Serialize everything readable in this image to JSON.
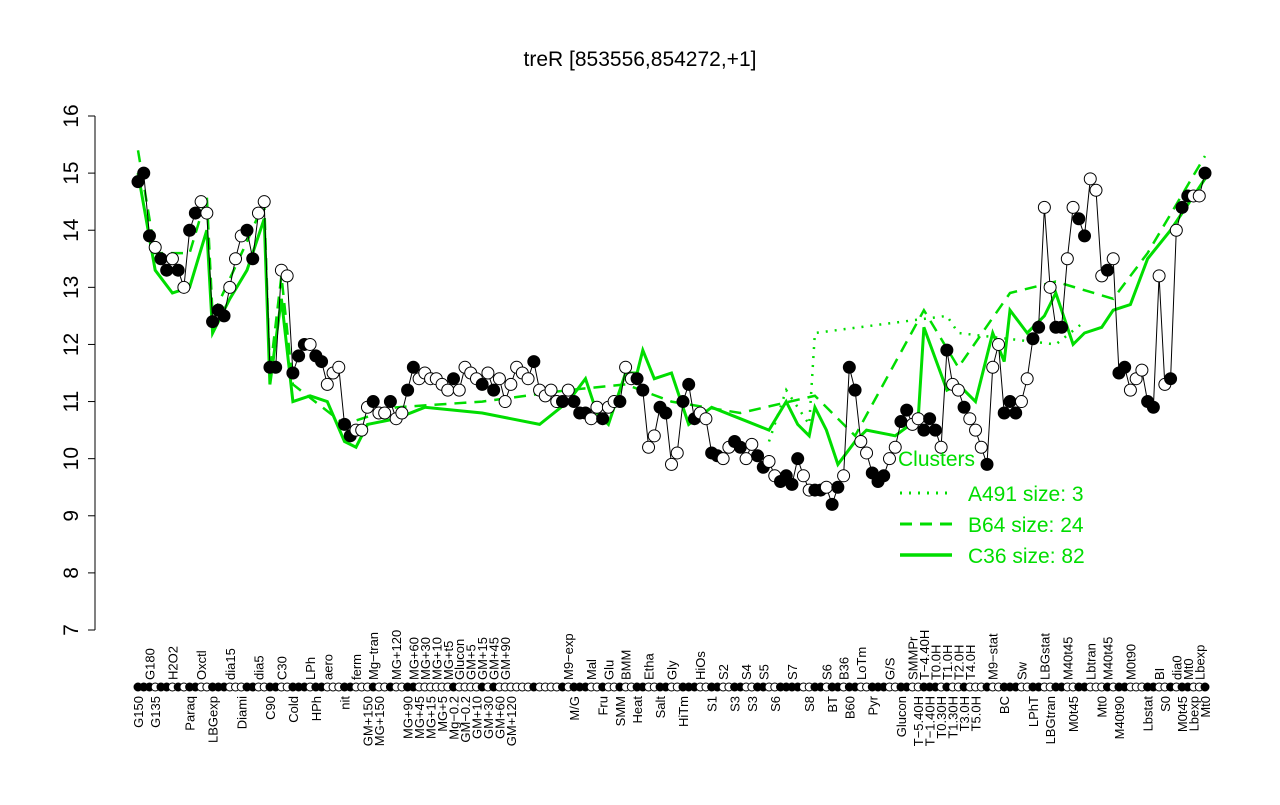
{
  "chart_data": {
    "type": "scatter",
    "title": "treR [853556,854272,+1]",
    "xlabel": "",
    "ylabel": "",
    "ylim": [
      7,
      16
    ],
    "yticks": [
      7,
      8,
      9,
      10,
      11,
      12,
      13,
      14,
      15,
      16
    ],
    "grid": false,
    "colors": {
      "points_stroke": "#000000",
      "filled": "#000000",
      "hollow": "#ffffff",
      "clusters": "#00dd00"
    },
    "legend": {
      "placement": "bottom-right",
      "title": "Clusters",
      "entries": [
        {
          "label": "A491 size: 3",
          "style": "dotted"
        },
        {
          "label": "B64 size: 24",
          "style": "dashed"
        },
        {
          "label": "C36 size: 82",
          "style": "solid"
        }
      ]
    },
    "points": [
      [
        14.85,
        1,
        "G150"
      ],
      [
        15.0,
        1,
        ""
      ],
      [
        13.9,
        1,
        "G180"
      ],
      [
        13.7,
        0,
        "G135"
      ],
      [
        13.5,
        1,
        ""
      ],
      [
        13.3,
        1,
        ""
      ],
      [
        13.5,
        0,
        "H2O2"
      ],
      [
        13.3,
        1,
        ""
      ],
      [
        13.0,
        0,
        ""
      ],
      [
        14.0,
        1,
        "Paraq"
      ],
      [
        14.3,
        1,
        ""
      ],
      [
        14.5,
        0,
        "Oxctl"
      ],
      [
        14.3,
        0,
        ""
      ],
      [
        12.4,
        1,
        "LBGexp"
      ],
      [
        12.6,
        1,
        ""
      ],
      [
        12.5,
        1,
        ""
      ],
      [
        13.0,
        0,
        "dia15"
      ],
      [
        13.5,
        0,
        ""
      ],
      [
        13.9,
        0,
        "Diami"
      ],
      [
        14.0,
        1,
        ""
      ],
      [
        13.5,
        1,
        ""
      ],
      [
        14.3,
        0,
        "dia5"
      ],
      [
        14.5,
        0,
        ""
      ],
      [
        11.6,
        1,
        "C90"
      ],
      [
        11.6,
        1,
        ""
      ],
      [
        13.3,
        0,
        "C30"
      ],
      [
        13.2,
        0,
        ""
      ],
      [
        11.5,
        1,
        "Cold"
      ],
      [
        11.8,
        1,
        ""
      ],
      [
        12.0,
        1,
        ""
      ],
      [
        12.0,
        0,
        "LPh"
      ],
      [
        11.8,
        1,
        "HPh"
      ],
      [
        11.7,
        1,
        ""
      ],
      [
        11.3,
        0,
        "aero"
      ],
      [
        11.5,
        0,
        ""
      ],
      [
        11.6,
        0,
        ""
      ],
      [
        10.6,
        1,
        "nit"
      ],
      [
        10.4,
        1,
        ""
      ],
      [
        10.5,
        0,
        "ferm"
      ],
      [
        10.5,
        0,
        ""
      ],
      [
        10.9,
        0,
        "GM+150"
      ],
      [
        11.0,
        1,
        "Mg−tran"
      ],
      [
        10.8,
        0,
        "MG+150"
      ],
      [
        10.8,
        0,
        ""
      ],
      [
        11.0,
        1,
        ""
      ],
      [
        10.7,
        0,
        "MG+120"
      ],
      [
        10.8,
        0,
        ""
      ],
      [
        11.2,
        1,
        "MG+90"
      ],
      [
        11.6,
        1,
        "MG+60"
      ],
      [
        11.4,
        0,
        "MG+45"
      ],
      [
        11.5,
        0,
        "MG+30"
      ],
      [
        11.4,
        0,
        "MG+15"
      ],
      [
        11.4,
        0,
        "MG+10"
      ],
      [
        11.3,
        0,
        "MG+5"
      ],
      [
        11.2,
        0,
        "MG+t5"
      ],
      [
        11.4,
        1,
        "Mg−0.2"
      ],
      [
        11.2,
        0,
        "Glucon"
      ],
      [
        11.6,
        0,
        "GM−0.2"
      ],
      [
        11.5,
        0,
        "GM+5"
      ],
      [
        11.4,
        0,
        "GM+10"
      ],
      [
        11.3,
        1,
        "GM+15"
      ],
      [
        11.5,
        0,
        "GM+30"
      ],
      [
        11.2,
        1,
        "GM+45"
      ],
      [
        11.4,
        0,
        "GM+60"
      ],
      [
        11.0,
        0,
        "GM+90"
      ],
      [
        11.3,
        0,
        "GM+120"
      ],
      [
        11.6,
        0,
        ""
      ],
      [
        11.5,
        0,
        ""
      ],
      [
        11.4,
        0,
        ""
      ],
      [
        11.7,
        1,
        ""
      ],
      [
        11.2,
        0,
        ""
      ],
      [
        11.1,
        0,
        ""
      ],
      [
        11.2,
        0,
        ""
      ],
      [
        11.0,
        0,
        ""
      ],
      [
        11.0,
        1,
        ""
      ],
      [
        11.2,
        0,
        "M9−exp"
      ],
      [
        11.0,
        1,
        "M/G"
      ],
      [
        10.8,
        1,
        ""
      ],
      [
        10.8,
        1,
        ""
      ],
      [
        10.7,
        0,
        "Mal"
      ],
      [
        10.9,
        0,
        ""
      ],
      [
        10.7,
        1,
        "Fru"
      ],
      [
        10.9,
        0,
        "Glu"
      ],
      [
        11.0,
        0,
        ""
      ],
      [
        11.0,
        1,
        "SMM"
      ],
      [
        11.6,
        0,
        "BMM"
      ],
      [
        11.4,
        0,
        ""
      ],
      [
        11.4,
        1,
        "Heat"
      ],
      [
        11.2,
        1,
        ""
      ],
      [
        10.2,
        0,
        "Etha"
      ],
      [
        10.4,
        0,
        ""
      ],
      [
        10.9,
        1,
        "Salt"
      ],
      [
        10.8,
        1,
        ""
      ],
      [
        9.9,
        0,
        "Gly"
      ],
      [
        10.1,
        0,
        ""
      ],
      [
        11.0,
        1,
        "HiTm"
      ],
      [
        11.3,
        1,
        ""
      ],
      [
        10.7,
        1,
        ""
      ],
      [
        10.8,
        0,
        "HiOs"
      ],
      [
        10.7,
        0,
        ""
      ],
      [
        10.1,
        1,
        "S1"
      ],
      [
        10.05,
        1,
        ""
      ],
      [
        10.0,
        0,
        "S2"
      ],
      [
        10.2,
        0,
        ""
      ],
      [
        10.3,
        1,
        "S3"
      ],
      [
        10.2,
        1,
        ""
      ],
      [
        10.0,
        0,
        "S4"
      ],
      [
        10.25,
        0,
        "S3"
      ],
      [
        10.05,
        1,
        ""
      ],
      [
        9.85,
        1,
        "S5"
      ],
      [
        9.95,
        0,
        ""
      ],
      [
        9.7,
        0,
        "S6"
      ],
      [
        9.6,
        1,
        ""
      ],
      [
        9.7,
        1,
        ""
      ],
      [
        9.55,
        1,
        "S7"
      ],
      [
        10.0,
        1,
        ""
      ],
      [
        9.7,
        0,
        ""
      ],
      [
        9.45,
        0,
        "S8"
      ],
      [
        9.45,
        1,
        ""
      ],
      [
        9.45,
        1,
        ""
      ],
      [
        9.5,
        0,
        "S6"
      ],
      [
        9.2,
        1,
        "BT"
      ],
      [
        9.5,
        1,
        ""
      ],
      [
        9.7,
        0,
        "B36"
      ],
      [
        11.6,
        1,
        "B60"
      ],
      [
        11.2,
        1,
        ""
      ],
      [
        10.3,
        0,
        "LoTm"
      ],
      [
        10.1,
        0,
        ""
      ],
      [
        9.75,
        1,
        "Pyr"
      ],
      [
        9.6,
        1,
        ""
      ],
      [
        9.7,
        1,
        ""
      ],
      [
        10.0,
        0,
        "G/S"
      ],
      [
        10.2,
        0,
        ""
      ],
      [
        10.65,
        1,
        "Glucon"
      ],
      [
        10.85,
        1,
        ""
      ],
      [
        10.6,
        0,
        "SMMPr"
      ],
      [
        10.7,
        0,
        "T−5.40H"
      ],
      [
        10.5,
        1,
        "T−4.40H"
      ],
      [
        10.7,
        1,
        "T−1.40H"
      ],
      [
        10.5,
        1,
        "T0.0H"
      ],
      [
        10.2,
        0,
        "T0.30H"
      ],
      [
        11.9,
        1,
        "T1.0H"
      ],
      [
        11.3,
        0,
        "T1.30H"
      ],
      [
        11.2,
        0,
        "T2.0H"
      ],
      [
        10.9,
        1,
        "T3.0H"
      ],
      [
        10.7,
        0,
        "T4.0H"
      ],
      [
        10.5,
        0,
        "T5.0H"
      ],
      [
        10.2,
        0,
        ""
      ],
      [
        9.9,
        1,
        ""
      ],
      [
        11.6,
        0,
        "M9−stat"
      ],
      [
        12.0,
        0,
        ""
      ],
      [
        10.8,
        1,
        "BC"
      ],
      [
        11.0,
        1,
        ""
      ],
      [
        10.8,
        1,
        ""
      ],
      [
        11.0,
        0,
        "Sw"
      ],
      [
        11.4,
        0,
        ""
      ],
      [
        12.1,
        1,
        "LPhT"
      ],
      [
        12.3,
        1,
        ""
      ],
      [
        14.4,
        0,
        "LBGstat"
      ],
      [
        13.0,
        0,
        "LBGtran"
      ],
      [
        12.3,
        1,
        ""
      ],
      [
        12.3,
        1,
        ""
      ],
      [
        13.5,
        0,
        "M40t45"
      ],
      [
        14.4,
        0,
        "M0t45"
      ],
      [
        14.2,
        1,
        ""
      ],
      [
        13.9,
        1,
        ""
      ],
      [
        14.9,
        0,
        "Lbtran"
      ],
      [
        14.7,
        0,
        ""
      ],
      [
        13.2,
        0,
        "Mt0"
      ],
      [
        13.3,
        1,
        "M40t45"
      ],
      [
        13.5,
        0,
        ""
      ],
      [
        11.5,
        1,
        "M40t90"
      ],
      [
        11.6,
        1,
        ""
      ],
      [
        11.2,
        0,
        "M0t90"
      ],
      [
        11.4,
        0,
        ""
      ],
      [
        11.55,
        0,
        ""
      ],
      [
        11.0,
        1,
        "Lbstat"
      ],
      [
        10.9,
        1,
        ""
      ],
      [
        13.2,
        0,
        "BI"
      ],
      [
        11.3,
        0,
        "S0"
      ],
      [
        11.4,
        1,
        ""
      ],
      [
        14.0,
        0,
        "dia0"
      ],
      [
        14.4,
        1,
        "M0t45"
      ],
      [
        14.6,
        1,
        "Mt0"
      ],
      [
        14.6,
        0,
        "Lbexp"
      ],
      [
        14.6,
        0,
        "Lbexp"
      ],
      [
        15.0,
        1,
        "Mt0"
      ]
    ],
    "cluster_lines": {
      "C36 size: 82": [
        [
          0,
          15.0
        ],
        [
          3,
          13.3
        ],
        [
          6,
          12.9
        ],
        [
          9,
          13.0
        ],
        [
          12,
          14.0
        ],
        [
          13,
          12.2
        ],
        [
          16,
          12.8
        ],
        [
          19,
          13.3
        ],
        [
          22,
          14.2
        ],
        [
          23,
          11.3
        ],
        [
          25,
          12.8
        ],
        [
          27,
          11.0
        ],
        [
          30,
          11.1
        ],
        [
          33,
          11.0
        ],
        [
          36,
          10.3
        ],
        [
          38,
          10.2
        ],
        [
          40,
          10.6
        ],
        [
          45,
          10.7
        ],
        [
          50,
          10.9
        ],
        [
          60,
          10.8
        ],
        [
          70,
          10.6
        ],
        [
          75,
          11.0
        ],
        [
          78,
          11.4
        ],
        [
          80,
          10.8
        ],
        [
          82,
          10.6
        ],
        [
          85,
          11.5
        ],
        [
          87,
          11.5
        ],
        [
          88,
          11.9
        ],
        [
          90,
          11.4
        ],
        [
          93,
          11.5
        ],
        [
          96,
          10.6
        ],
        [
          100,
          10.9
        ],
        [
          105,
          10.7
        ],
        [
          110,
          10.5
        ],
        [
          113,
          11.0
        ],
        [
          115,
          10.6
        ],
        [
          117,
          10.4
        ],
        [
          118,
          10.9
        ],
        [
          120,
          10.5
        ],
        [
          122,
          9.9
        ],
        [
          125,
          10.3
        ],
        [
          127,
          10.5
        ],
        [
          132,
          10.4
        ],
        [
          136,
          10.7
        ],
        [
          137,
          12.3
        ],
        [
          141,
          11.2
        ],
        [
          143,
          11.3
        ],
        [
          146,
          11.0
        ],
        [
          149,
          12.2
        ],
        [
          151,
          11.7
        ],
        [
          152,
          12.6
        ],
        [
          155,
          12.2
        ],
        [
          158,
          12.5
        ],
        [
          160,
          12.9
        ],
        [
          163,
          12.0
        ],
        [
          165,
          12.2
        ],
        [
          168,
          12.3
        ],
        [
          170,
          12.6
        ],
        [
          173,
          12.7
        ],
        [
          176,
          13.5
        ],
        [
          180,
          14.0
        ],
        [
          186,
          14.9
        ]
      ],
      "B64 size: 24": [
        [
          0,
          15.4
        ],
        [
          3,
          13.6
        ],
        [
          9,
          13.6
        ],
        [
          12,
          14.6
        ],
        [
          13,
          12.5
        ],
        [
          19,
          13.8
        ],
        [
          22,
          14.5
        ],
        [
          23,
          11.5
        ],
        [
          25,
          13.2
        ],
        [
          27,
          11.3
        ],
        [
          36,
          10.6
        ],
        [
          45,
          10.9
        ],
        [
          60,
          11.0
        ],
        [
          75,
          11.2
        ],
        [
          85,
          11.3
        ],
        [
          93,
          11.0
        ],
        [
          105,
          10.8
        ],
        [
          118,
          11.1
        ],
        [
          125,
          10.4
        ],
        [
          137,
          12.6
        ],
        [
          143,
          11.6
        ],
        [
          152,
          12.9
        ],
        [
          160,
          13.1
        ],
        [
          170,
          12.8
        ],
        [
          176,
          13.6
        ],
        [
          186,
          15.3
        ]
      ],
      "A491 size: 3": [
        [
          110,
          10.3
        ],
        [
          113,
          11.2
        ],
        [
          117,
          10.6
        ],
        [
          118,
          12.2
        ],
        [
          141,
          12.5
        ],
        [
          143,
          12.2
        ],
        [
          160,
          12.0
        ],
        [
          165,
          12.4
        ]
      ]
    }
  }
}
